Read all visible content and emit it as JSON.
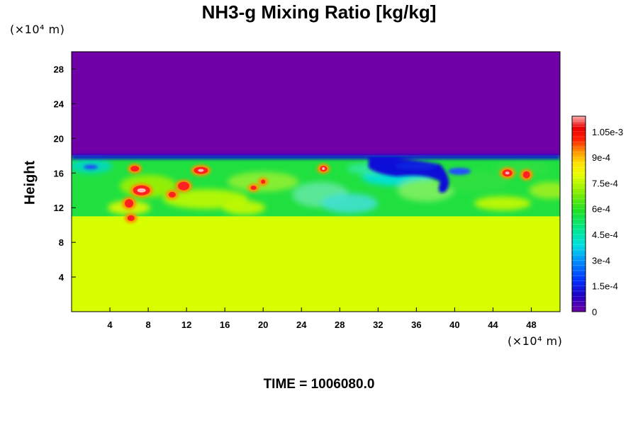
{
  "chart_data": {
    "type": "heatmap",
    "title": "NH3-g Mixing Ratio [kg/kg]",
    "ylabel": "Height",
    "xlabel": "",
    "x_unit": "(×10⁴ m)",
    "y_unit": "(×10⁴ m)",
    "x_ticks": [
      4,
      8,
      12,
      16,
      20,
      24,
      28,
      32,
      36,
      40,
      44,
      48
    ],
    "y_ticks": [
      4,
      8,
      12,
      16,
      20,
      24,
      28
    ],
    "xlim": [
      0,
      51
    ],
    "ylim": [
      0,
      30
    ],
    "colorbar": {
      "range": [
        0,
        0.00114
      ],
      "tick_values": [
        0,
        0.00015,
        0.0003,
        0.00045,
        0.0006,
        0.00075,
        0.0009,
        0.00105
      ],
      "tick_labels": [
        "0",
        "1.5e-4",
        "3e-4",
        "4.5e-4",
        "6e-4",
        "7.5e-4",
        "9e-4",
        "1.05e-3"
      ]
    },
    "regions": {
      "above_cloud_top": {
        "height_min": 18,
        "height_max": 30,
        "value": 0
      },
      "lower_layer": {
        "height_min": 0,
        "height_max": 11,
        "value": 0.00078
      },
      "mixed_layer": {
        "height_min": 11,
        "height_max": 18,
        "value_range": [
          0.0001,
          0.00112
        ]
      }
    },
    "colors": {
      "zero": "#7000a8",
      "low": "#1010d8",
      "mid": "#00d8d0",
      "green": "#20e040",
      "base": "#d8ff00",
      "high": "#ff2020",
      "max": "#ffb8b8"
    }
  },
  "time_label": "TIME = 1006080.0"
}
